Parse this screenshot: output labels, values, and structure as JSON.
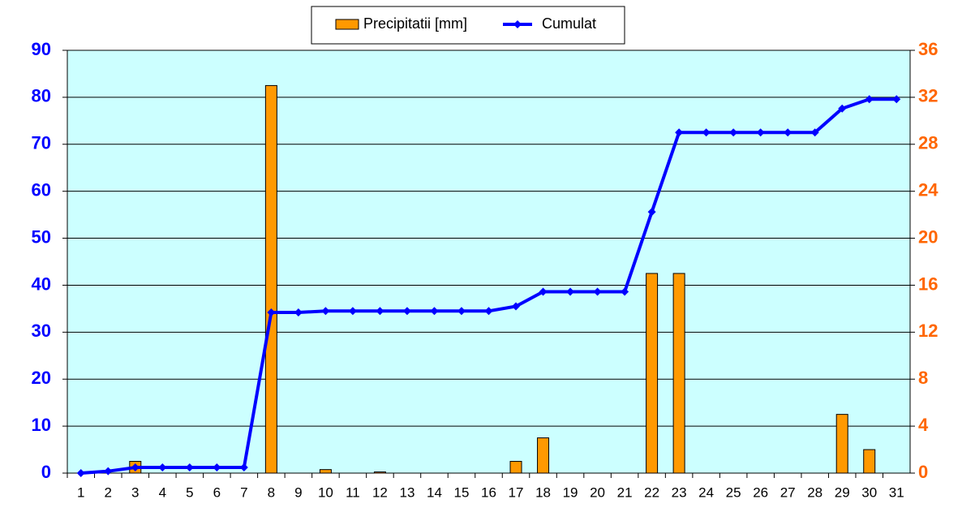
{
  "chart_data": {
    "type": "bar-line",
    "categories": [
      "1",
      "2",
      "3",
      "4",
      "5",
      "6",
      "7",
      "8",
      "9",
      "10",
      "11",
      "12",
      "13",
      "14",
      "15",
      "16",
      "17",
      "18",
      "19",
      "20",
      "21",
      "22",
      "23",
      "24",
      "25",
      "26",
      "27",
      "28",
      "29",
      "30",
      "31"
    ],
    "series": [
      {
        "name": "Precipitatii [mm]",
        "type": "bar",
        "axis": "y2",
        "color": "#ff9900",
        "values": [
          0,
          0,
          1.0,
          0,
          0,
          0,
          0,
          33.0,
          0,
          0.3,
          0,
          0.1,
          0,
          0,
          0,
          0,
          1.0,
          3.0,
          0,
          0,
          0,
          17.0,
          17.0,
          0,
          0,
          0,
          0,
          0,
          5.0,
          2.0,
          0
        ]
      },
      {
        "name": "Cumulat",
        "type": "line",
        "axis": "y",
        "color": "#0000ff",
        "values": [
          0,
          0.4,
          1.2,
          1.2,
          1.2,
          1.2,
          1.2,
          34.2,
          34.2,
          34.5,
          34.5,
          34.5,
          34.5,
          34.5,
          34.5,
          34.5,
          35.5,
          38.6,
          38.6,
          38.6,
          38.6,
          55.6,
          72.5,
          72.5,
          72.5,
          72.5,
          72.5,
          72.5,
          77.6,
          79.6,
          79.6
        ]
      }
    ],
    "ylim": [
      0,
      90
    ],
    "yticks": [
      0,
      10,
      20,
      30,
      40,
      50,
      60,
      70,
      80,
      90
    ],
    "y2lim": [
      0,
      36
    ],
    "y2ticks": [
      0,
      4,
      8,
      12,
      16,
      20,
      24,
      28,
      32,
      36
    ],
    "grid": true,
    "legend": "top"
  }
}
